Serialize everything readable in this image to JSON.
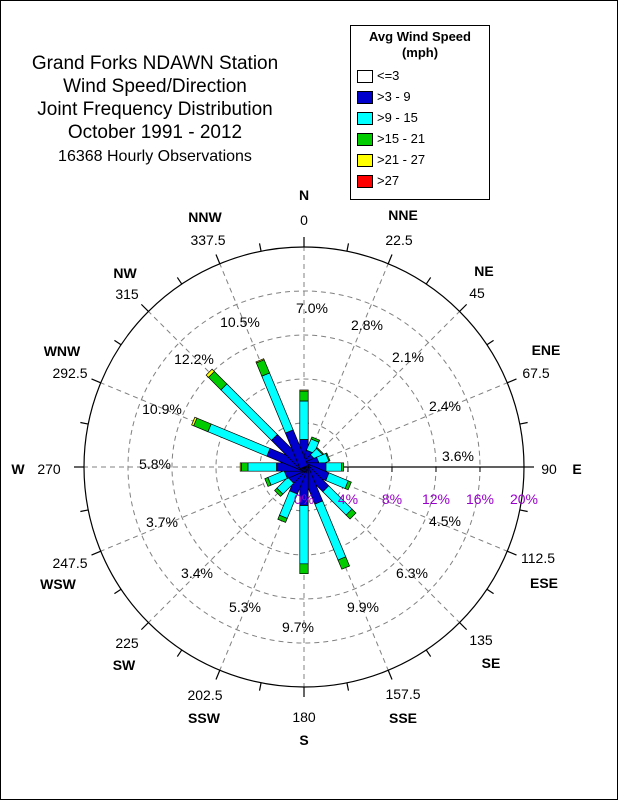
{
  "chart_data": {
    "type": "windrose",
    "title_lines": [
      "Grand Forks NDAWN Station",
      "Wind Speed/Direction",
      "Joint Frequency Distribution",
      "October 1991 - 2012"
    ],
    "subtitle": "16368 Hourly Observations",
    "legend": {
      "title": "Avg Wind Speed (mph)",
      "title_line1": "Avg Wind Speed",
      "title_line2": "(mph)",
      "placement": "top-right"
    },
    "speed_bins": [
      {
        "label": "<=3",
        "color": "#ffffff"
      },
      {
        "label": ">3 - 9",
        "color": "#0000cc"
      },
      {
        "label": ">9 - 15",
        "color": "#00ffff"
      },
      {
        "label": ">15 - 21",
        "color": "#00cc00"
      },
      {
        "label": ">21 - 27",
        "color": "#ffff00"
      },
      {
        "label": ">27",
        "color": "#ff0000"
      }
    ],
    "directions": [
      {
        "name": "N",
        "angle": 0,
        "angle_label": "0",
        "total_label": "7.0%",
        "values": [
          0,
          2.5,
          3.5,
          0.9,
          0.1,
          0
        ]
      },
      {
        "name": "NNE",
        "angle": 22.5,
        "angle_label": "22.5",
        "total_label": "2.8%",
        "values": [
          0,
          1.5,
          1.1,
          0.2,
          0,
          0
        ]
      },
      {
        "name": "NE",
        "angle": 45,
        "angle_label": "45",
        "total_label": "2.1%",
        "values": [
          0,
          1.2,
          0.8,
          0.1,
          0,
          0
        ]
      },
      {
        "name": "ENE",
        "angle": 67.5,
        "angle_label": "67.5",
        "total_label": "2.4%",
        "values": [
          0,
          1.4,
          0.9,
          0.1,
          0,
          0
        ]
      },
      {
        "name": "E",
        "angle": 90,
        "angle_label": "90",
        "total_label": "3.6%",
        "values": [
          0,
          2.0,
          1.4,
          0.2,
          0,
          0
        ]
      },
      {
        "name": "ESE",
        "angle": 112.5,
        "angle_label": "112.5",
        "total_label": "4.5%",
        "values": [
          0,
          2.3,
          1.9,
          0.3,
          0,
          0
        ]
      },
      {
        "name": "SE",
        "angle": 135,
        "angle_label": "135",
        "total_label": "6.3%",
        "values": [
          0,
          2.8,
          3.0,
          0.5,
          0,
          0
        ]
      },
      {
        "name": "SSE",
        "angle": 157.5,
        "angle_label": "157.5",
        "total_label": "9.9%",
        "values": [
          0,
          3.5,
          5.5,
          0.9,
          0,
          0
        ]
      },
      {
        "name": "S",
        "angle": 180,
        "angle_label": "180",
        "total_label": "9.7%",
        "values": [
          0,
          3.5,
          5.3,
          0.9,
          0,
          0
        ]
      },
      {
        "name": "SSW",
        "angle": 202.5,
        "angle_label": "202.5",
        "total_label": "5.3%",
        "values": [
          0,
          2.5,
          2.4,
          0.4,
          0,
          0
        ]
      },
      {
        "name": "SW",
        "angle": 225,
        "angle_label": "225",
        "total_label": "3.4%",
        "values": [
          0,
          1.7,
          1.4,
          0.3,
          0,
          0
        ]
      },
      {
        "name": "WSW",
        "angle": 247.5,
        "angle_label": "247.5",
        "total_label": "3.7%",
        "values": [
          0,
          1.8,
          1.6,
          0.3,
          0,
          0
        ]
      },
      {
        "name": "W",
        "angle": 270,
        "angle_label": "270",
        "total_label": "5.8%",
        "values": [
          0,
          2.5,
          2.6,
          0.6,
          0.1,
          0
        ]
      },
      {
        "name": "WNW",
        "angle": 292.5,
        "angle_label": "292.5",
        "total_label": "10.9%",
        "values": [
          0,
          3.5,
          5.8,
          1.4,
          0.2,
          0
        ]
      },
      {
        "name": "NW",
        "angle": 315,
        "angle_label": "315",
        "total_label": "12.2%",
        "values": [
          0,
          3.8,
          6.5,
          1.6,
          0.3,
          0
        ]
      },
      {
        "name": "NNW",
        "angle": 337.5,
        "angle_label": "337.5",
        "total_label": "10.5%",
        "values": [
          0,
          3.5,
          5.6,
          1.3,
          0.1,
          0
        ]
      }
    ],
    "radial_axis": {
      "ticks": [
        0,
        4,
        8,
        12,
        16,
        20
      ],
      "tick_labels": [
        "0%",
        "4%",
        "8%",
        "12%",
        "16%",
        "20%"
      ],
      "max": 20,
      "label_color": "#9900cc"
    },
    "grid": true
  }
}
